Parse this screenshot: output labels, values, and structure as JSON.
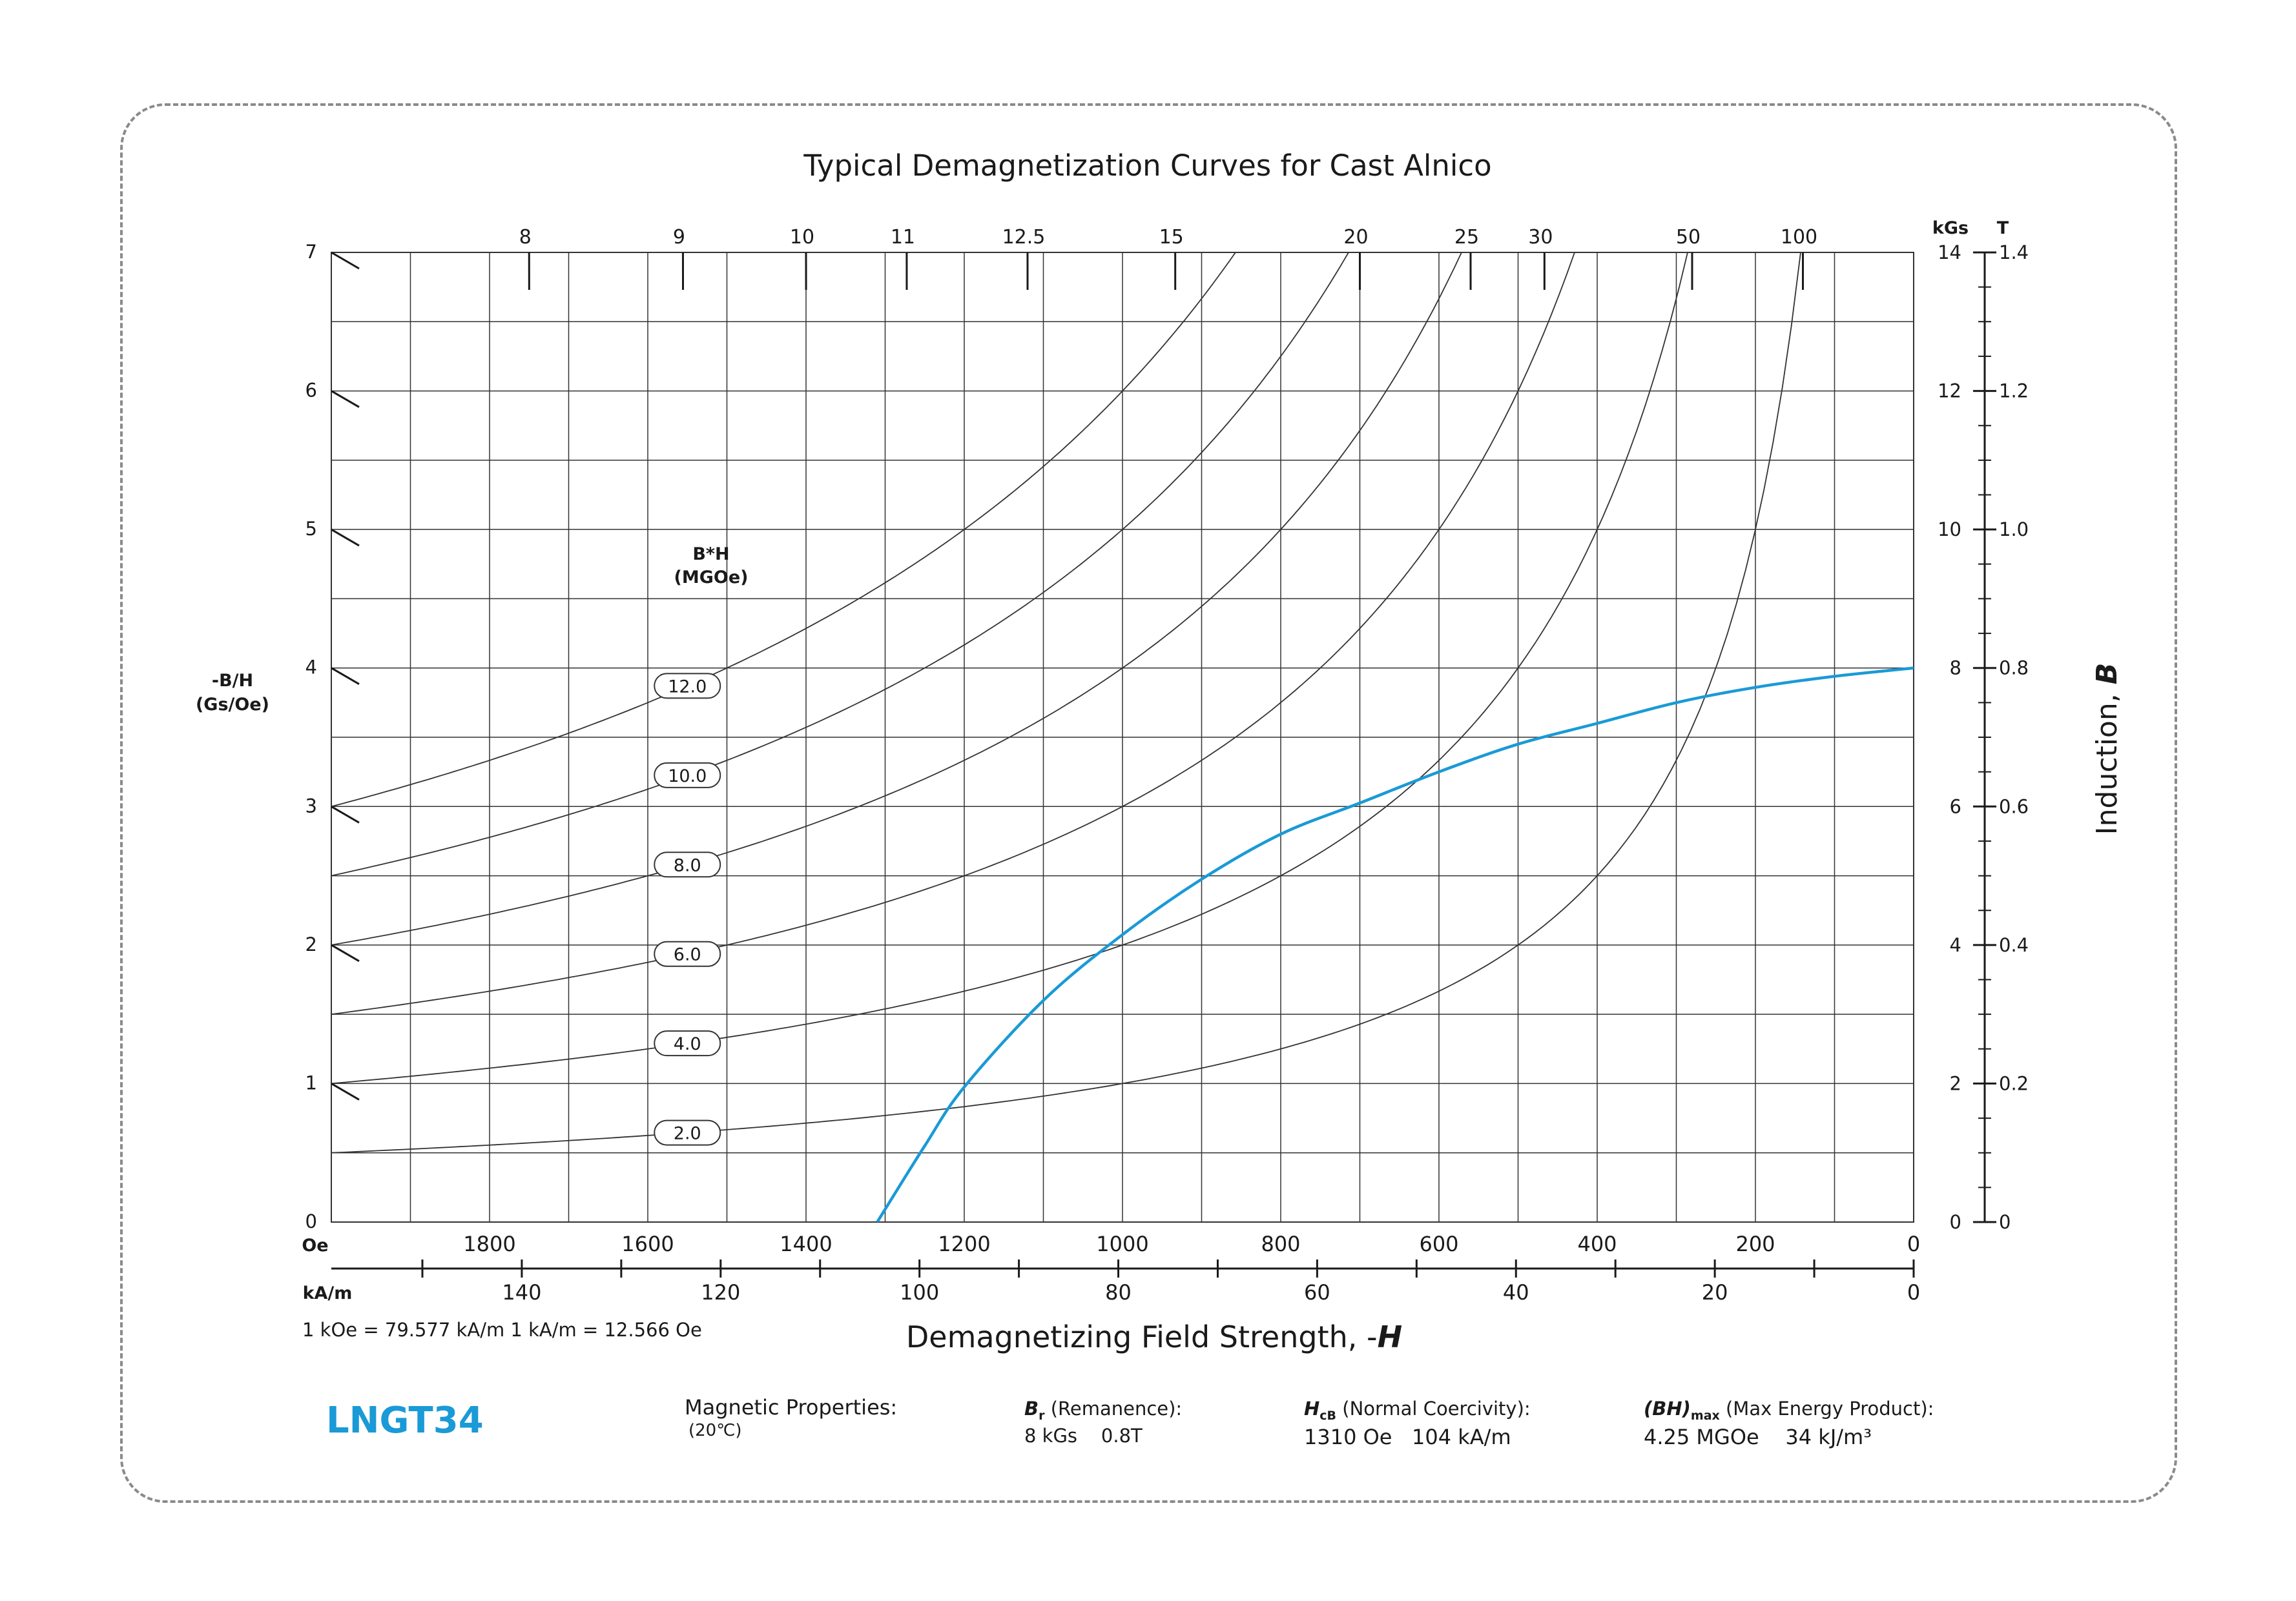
{
  "chart_data": {
    "type": "line",
    "title": "Typical Demagnetization Curves for Cast Alnico",
    "xlabel": "Demagnetizing Field Strength, -H",
    "x_axis_units": [
      "Oe",
      "kA/m"
    ],
    "x_oe_range": [
      2000,
      0
    ],
    "x_oe_ticks": [
      1800,
      1600,
      1400,
      1200,
      1000,
      800,
      600,
      400,
      200,
      0
    ],
    "x_kam_ticks": [
      140,
      120,
      100,
      80,
      60,
      40,
      20,
      0
    ],
    "y_left": {
      "label": "-B/H (Gs/Oe)",
      "label_lines": [
        "-B/H",
        "(Gs/Oe)"
      ],
      "range": [
        0,
        7
      ],
      "ticks": [
        "0",
        "1",
        "2",
        "3",
        "4",
        "5",
        "6",
        "7"
      ]
    },
    "y_right": {
      "label": "Induction, B",
      "unit_kgs": "kGs",
      "unit_t": "T",
      "range_kgs": [
        0,
        14
      ],
      "ticks_kgs": [
        "0",
        "2",
        "4",
        "6",
        "8",
        "10",
        "12",
        "14"
      ],
      "ticks_t": [
        "0",
        "0.2",
        "0.4",
        "0.6",
        "0.8",
        "1.0",
        "1.2",
        "1.4"
      ]
    },
    "permeance_lines": {
      "top_labels": [
        "8",
        "9",
        "10",
        "11",
        "12.5",
        "15",
        "20",
        "25",
        "30",
        "50",
        "100"
      ],
      "top_values": [
        8,
        9,
        10,
        11,
        12.5,
        15,
        20,
        25,
        30,
        50,
        100
      ]
    },
    "energy_product_contours": {
      "header_lines": [
        "B*H",
        "(MGOe)"
      ],
      "labels": [
        "12.0",
        "10.0",
        "8.0",
        "6.0",
        "4.0",
        "2.0"
      ],
      "values": [
        12.0,
        10.0,
        8.0,
        6.0,
        4.0,
        2.0
      ]
    },
    "series": [
      {
        "color": "#1a9ad6",
        "x": [
          1310,
          1250,
          1200,
          1100,
          1000,
          900,
          800,
          700,
          600,
          500,
          400,
          300,
          200,
          100,
          0
        ],
        "y": [
          0,
          1.1,
          1.95,
          3.2,
          4.15,
          4.95,
          5.6,
          6.05,
          6.5,
          6.9,
          7.2,
          7.5,
          7.72,
          7.88,
          8.0
        ]
      }
    ],
    "grid": true
  },
  "conversion_note": "1 kOe = 79.577 kA/m   1 kA/m = 12.566 Oe",
  "grade": "LNGT34",
  "properties": {
    "header": "Magnetic Properties:",
    "temperature": "(20℃)",
    "br_symbol": "B",
    "br_sub": "r",
    "br_desc": " (Remanence):",
    "br_values": "8 kGs    0.8T",
    "hcb_symbol": "H",
    "hcb_sub": "cB",
    "hcb_desc": " (Normal Coercivity):",
    "hcb_values": "1310 Oe   104 kA/m",
    "bh_symbol": "(BH)",
    "bh_sub": "max",
    "bh_desc": " (Max Energy Product):",
    "bh_values": "4.25 MGOe    34 kJ/m³"
  },
  "colors": {
    "accent": "#1a9ad6",
    "grid": "#333333",
    "frame": "#8a8a8a"
  }
}
